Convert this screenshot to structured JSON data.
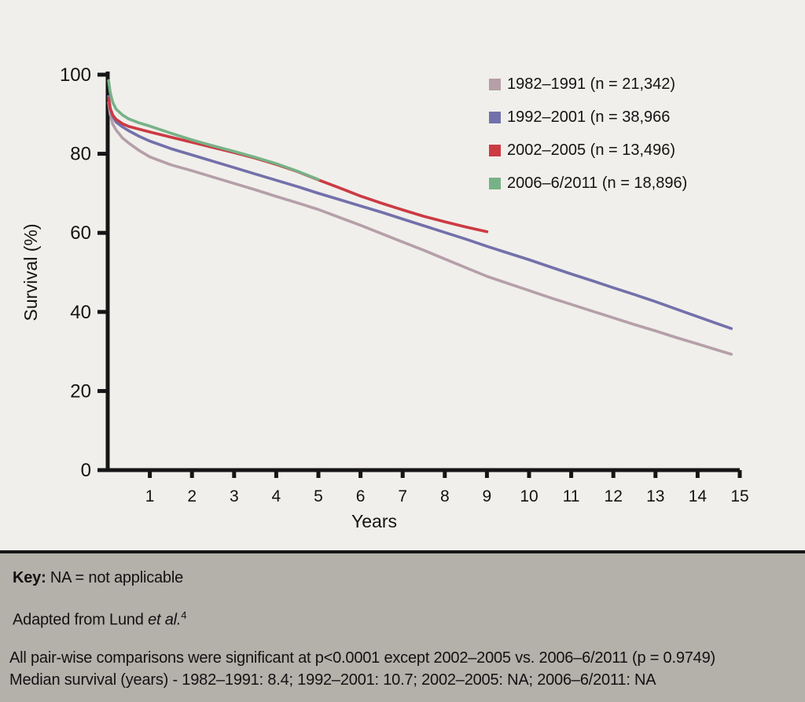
{
  "chart_data": {
    "type": "line",
    "title": "",
    "xlabel": "Years",
    "ylabel": "Survival (%)",
    "xlim": [
      0,
      15
    ],
    "ylim": [
      0,
      100
    ],
    "x_ticks": [
      1,
      2,
      3,
      4,
      5,
      6,
      7,
      8,
      9,
      10,
      11,
      12,
      13,
      14,
      15
    ],
    "y_ticks": [
      0,
      20,
      40,
      60,
      80,
      100
    ],
    "grid": false,
    "legend_position": "upper-right",
    "axis_color": "#161616",
    "series": [
      {
        "name": "1982–1991 (n = 21,342)",
        "color": "#b59fa9",
        "median_survival_years": "8.4",
        "points": [
          [
            0.02,
            93
          ],
          [
            0.06,
            90
          ],
          [
            0.12,
            87.5
          ],
          [
            0.2,
            86
          ],
          [
            0.35,
            84
          ],
          [
            0.5,
            82.7
          ],
          [
            0.75,
            80.8
          ],
          [
            1,
            79.2
          ],
          [
            1.5,
            77.2
          ],
          [
            2,
            75.7
          ],
          [
            2.5,
            74.1
          ],
          [
            3,
            72.5
          ],
          [
            3.5,
            70.9
          ],
          [
            4,
            69.2
          ],
          [
            4.5,
            67.6
          ],
          [
            5,
            65.9
          ],
          [
            5.5,
            63.9
          ],
          [
            6,
            61.9
          ],
          [
            6.5,
            59.8
          ],
          [
            7,
            57.7
          ],
          [
            7.5,
            55.6
          ],
          [
            8,
            53.4
          ],
          [
            8.5,
            51.2
          ],
          [
            9,
            49
          ],
          [
            9.5,
            47.2
          ],
          [
            10,
            45.4
          ],
          [
            10.5,
            43.6
          ],
          [
            11,
            41.9
          ],
          [
            11.5,
            40.2
          ],
          [
            12,
            38.5
          ],
          [
            12.5,
            36.8
          ],
          [
            13,
            35.2
          ],
          [
            13.5,
            33.5
          ],
          [
            14,
            31.9
          ],
          [
            14.4,
            30.6
          ],
          [
            14.8,
            29.3
          ]
        ]
      },
      {
        "name": "1992–2001 (n = 38,966",
        "color": "#7370ab",
        "median_survival_years": "10.7",
        "points": [
          [
            0.02,
            94.5
          ],
          [
            0.06,
            91.5
          ],
          [
            0.12,
            89.5
          ],
          [
            0.2,
            88
          ],
          [
            0.35,
            86.8
          ],
          [
            0.5,
            85.8
          ],
          [
            0.75,
            84.4
          ],
          [
            1,
            83.2
          ],
          [
            1.5,
            81.3
          ],
          [
            2,
            79.7
          ],
          [
            2.5,
            78.1
          ],
          [
            3,
            76.5
          ],
          [
            3.5,
            74.9
          ],
          [
            4,
            73.3
          ],
          [
            4.5,
            71.7
          ],
          [
            5,
            70
          ],
          [
            5.5,
            68.4
          ],
          [
            6,
            66.8
          ],
          [
            6.5,
            65.2
          ],
          [
            7,
            63.5
          ],
          [
            7.5,
            61.8
          ],
          [
            8,
            60.1
          ],
          [
            8.5,
            58.4
          ],
          [
            9,
            56.6
          ],
          [
            9.5,
            54.9
          ],
          [
            10,
            53.2
          ],
          [
            10.5,
            51.4
          ],
          [
            11,
            49.6
          ],
          [
            11.5,
            47.9
          ],
          [
            12,
            46.1
          ],
          [
            12.5,
            44.4
          ],
          [
            13,
            42.6
          ],
          [
            13.5,
            40.7
          ],
          [
            14,
            38.8
          ],
          [
            14.4,
            37.3
          ],
          [
            14.8,
            35.8
          ]
        ]
      },
      {
        "name": "2002–2005 (n = 13,496)",
        "color": "#cc3a43",
        "median_survival_years": "NA",
        "points": [
          [
            0.02,
            94
          ],
          [
            0.06,
            91.5
          ],
          [
            0.12,
            89.8
          ],
          [
            0.2,
            88.7
          ],
          [
            0.35,
            87.6
          ],
          [
            0.5,
            86.9
          ],
          [
            0.75,
            86.2
          ],
          [
            1,
            85.5
          ],
          [
            1.5,
            84.2
          ],
          [
            2,
            82.9
          ],
          [
            2.5,
            81.6
          ],
          [
            3,
            80.3
          ],
          [
            3.5,
            78.9
          ],
          [
            4,
            77.3
          ],
          [
            4.5,
            75.5
          ],
          [
            5,
            73.4
          ],
          [
            5.5,
            71.4
          ],
          [
            6,
            69.3
          ],
          [
            6.5,
            67.5
          ],
          [
            7,
            65.8
          ],
          [
            7.5,
            64.2
          ],
          [
            8,
            62.8
          ],
          [
            8.5,
            61.5
          ],
          [
            9,
            60.3
          ]
        ]
      },
      {
        "name": "2006–6/2011 (n = 18,896)",
        "color": "#77b287",
        "median_survival_years": "NA",
        "points": [
          [
            0.02,
            98.5
          ],
          [
            0.06,
            95.5
          ],
          [
            0.12,
            93
          ],
          [
            0.2,
            91.3
          ],
          [
            0.35,
            89.8
          ],
          [
            0.5,
            88.8
          ],
          [
            0.75,
            87.8
          ],
          [
            1,
            87
          ],
          [
            1.5,
            85.2
          ],
          [
            2,
            83.5
          ],
          [
            2.5,
            82
          ],
          [
            3,
            80.6
          ],
          [
            3.5,
            79.1
          ],
          [
            4,
            77.5
          ],
          [
            4.5,
            75.6
          ],
          [
            5,
            73.5
          ]
        ]
      }
    ]
  },
  "footer": {
    "key_label": "Key:",
    "key_text": " NA = not applicable",
    "adapted_prefix": "Adapted from Lund ",
    "adapted_italic": "et al.",
    "adapted_sup": "4",
    "stats_line": "All pair-wise comparisons were significant at p<0.0001 except 2002–2005 vs. 2006–6/2011 (p = 0.9749)",
    "median_line": "Median survival (years) - 1982–1991: 8.4; 1992–2001: 10.7; 2002–2005: NA; 2006–6/2011: NA"
  }
}
